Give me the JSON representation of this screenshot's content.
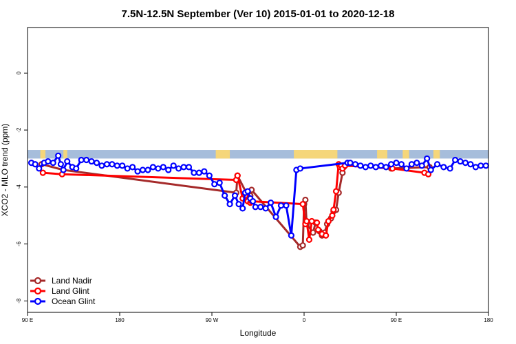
{
  "chart_data": {
    "type": "line",
    "title": "7.5N-12.5N September (Ver 10)   2015-01-01 to 2020-12-18",
    "xlabel": "Longitude",
    "ylabel": "XCO2 - MLO trend (ppm)",
    "xlim": [
      90,
      450
    ],
    "ylim": [
      -8.4,
      1.6
    ],
    "x_ticks": [
      {
        "value": 90,
        "label": "90 E"
      },
      {
        "value": 162,
        "label": "180"
      },
      {
        "value": 234,
        "label": "90 W"
      },
      {
        "value": 306,
        "label": "0"
      },
      {
        "value": 378,
        "label": "90 E"
      },
      {
        "value": 450,
        "label": "180"
      }
    ],
    "y_ticks": [
      {
        "value": 0,
        "label": "0"
      },
      {
        "value": -2,
        "label": "-2"
      },
      {
        "value": -4,
        "label": "-4"
      },
      {
        "value": -6,
        "label": "-6"
      },
      {
        "value": -8,
        "label": "-8"
      }
    ],
    "legend_position": "bottom-left",
    "land_mask": {
      "y_top": -2.7,
      "y_bottom": -3.0,
      "ocean_color": "#a6bddb",
      "land_color": "#f5d67a",
      "land_segments": [
        [
          100,
          104
        ],
        [
          118,
          121
        ],
        [
          237,
          248
        ],
        [
          298,
          332
        ],
        [
          363,
          371
        ],
        [
          383,
          388
        ],
        [
          407,
          412
        ]
      ]
    },
    "series": [
      {
        "name": "Land Nadir",
        "color": "#a52a2a",
        "x": [
          101,
          118,
          253,
          254,
          262,
          264,
          265,
          303,
          305,
          306,
          307,
          308,
          313,
          315,
          318,
          320,
          322,
          324,
          327,
          329,
          331,
          333,
          336,
          337,
          339,
          374,
          404
        ],
        "y": [
          -3.2,
          -3.4,
          -4.2,
          -3.6,
          -4.3,
          -4.3,
          -4.1,
          -6.1,
          -6.05,
          -4.6,
          -4.45,
          -5.3,
          -5.6,
          -5.25,
          -5.55,
          -5.7,
          -5.6,
          -5.3,
          -5.1,
          -4.85,
          -4.8,
          -4.2,
          -3.5,
          -3.3,
          -3.2,
          -3.35,
          -3.3
        ]
      },
      {
        "name": "Land Glint",
        "color": "#ff0000",
        "x": [
          102,
          117,
          253,
          254,
          258,
          260,
          262,
          264,
          265,
          305,
          307,
          308,
          310,
          312,
          316,
          317,
          320,
          323,
          325,
          328,
          329,
          331,
          333,
          334,
          335,
          336,
          338,
          375,
          400,
          403
        ],
        "y": [
          -3.5,
          -3.55,
          -3.75,
          -3.6,
          -4.4,
          -4.3,
          -4.5,
          -4.55,
          -4.5,
          -4.6,
          -5.3,
          -5.2,
          -5.85,
          -5.2,
          -5.25,
          -5.5,
          -5.65,
          -5.7,
          -5.2,
          -5.0,
          -4.8,
          -4.15,
          -3.2,
          -3.3,
          -3.25,
          -3.35,
          -3.25,
          -3.35,
          -3.5,
          -3.55
        ]
      },
      {
        "name": "Ocean Glint",
        "color": "#0000ff",
        "x": [
          93,
          96,
          99,
          103,
          106,
          110,
          114,
          116,
          118,
          121,
          125,
          128,
          132,
          136,
          140,
          144,
          148,
          152,
          156,
          160,
          164,
          168,
          172,
          176,
          180,
          184,
          188,
          192,
          196,
          200,
          204,
          208,
          212,
          216,
          220,
          224,
          228,
          232,
          236,
          240,
          244,
          248,
          252,
          255,
          258,
          260,
          262,
          264,
          266,
          268,
          272,
          276,
          280,
          284,
          288,
          292,
          296,
          300,
          303,
          340,
          342,
          346,
          350,
          354,
          358,
          362,
          366,
          370,
          374,
          378,
          382,
          386,
          390,
          394,
          398,
          402,
          405,
          410,
          415,
          420,
          424,
          428,
          432,
          436,
          440,
          444,
          448
        ],
        "y": [
          -3.15,
          -3.2,
          -3.35,
          -3.15,
          -3.1,
          -3.15,
          -2.9,
          -3.2,
          -3.4,
          -3.1,
          -3.3,
          -3.35,
          -3.05,
          -3.05,
          -3.1,
          -3.15,
          -3.25,
          -3.2,
          -3.2,
          -3.25,
          -3.25,
          -3.35,
          -3.3,
          -3.45,
          -3.4,
          -3.4,
          -3.3,
          -3.35,
          -3.3,
          -3.4,
          -3.25,
          -3.35,
          -3.3,
          -3.3,
          -3.5,
          -3.5,
          -3.45,
          -3.6,
          -3.9,
          -3.85,
          -4.3,
          -4.6,
          -4.3,
          -4.6,
          -4.75,
          -4.2,
          -4.15,
          -4.4,
          -4.5,
          -4.7,
          -4.7,
          -4.75,
          -4.55,
          -5.05,
          -4.65,
          -4.65,
          -5.7,
          -3.4,
          -3.35,
          -3.15,
          -3.15,
          -3.2,
          -3.25,
          -3.3,
          -3.25,
          -3.3,
          -3.25,
          -3.3,
          -3.2,
          -3.15,
          -3.2,
          -3.35,
          -3.2,
          -3.15,
          -3.25,
          -3.0,
          -3.4,
          -3.2,
          -3.3,
          -3.35,
          -3.05,
          -3.1,
          -3.15,
          -3.2,
          -3.3,
          -3.25,
          -3.25
        ]
      }
    ]
  }
}
